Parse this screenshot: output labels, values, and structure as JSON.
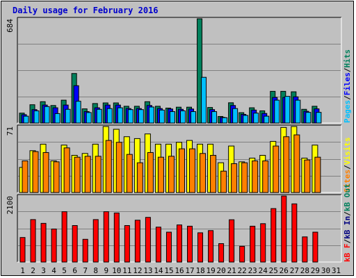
{
  "title": "Daily usage for February 2016",
  "colors": {
    "hits": "#00805c",
    "files": "#0000ff",
    "pages": "#00c0ff",
    "visits": "#ffff00",
    "sites": "#ff8000",
    "kb_in": "#000080",
    "kb_out": "#00805c",
    "kb_f": "#ff0000",
    "weekend": "#00805c",
    "frame_bg": "#c0c0c0",
    "plot_bg": "#c0c0c0"
  },
  "chart_data": [
    {
      "type": "bar",
      "panel": "hits-files-pages",
      "ymax_label": "684",
      "ylim": [
        0,
        684
      ],
      "legend": [
        {
          "label": "Pages",
          "color": "#00c0ff"
        },
        {
          "label": "/",
          "color": "#000000"
        },
        {
          "label": "Files",
          "color": "#0000ff"
        },
        {
          "label": "/",
          "color": "#000000"
        },
        {
          "label": "Hits",
          "color": "#00805c"
        }
      ],
      "categories": [
        "1",
        "2",
        "3",
        "4",
        "5",
        "6",
        "7",
        "8",
        "9",
        "10",
        "11",
        "12",
        "13",
        "14",
        "15",
        "16",
        "17",
        "18",
        "19",
        "20",
        "21",
        "22",
        "23",
        "24",
        "25",
        "26",
        "27",
        "28",
        "29",
        "30",
        "31"
      ],
      "series": [
        {
          "name": "Hits",
          "values": [
            65,
            120,
            140,
            115,
            150,
            325,
            93,
            128,
            132,
            132,
            110,
            110,
            140,
            110,
            98,
            104,
            104,
            684,
            102,
            43,
            133,
            68,
            100,
            80,
            208,
            208,
            205,
            90,
            110,
            0,
            0
          ]
        },
        {
          "name": "Files",
          "values": [
            55,
            88,
            118,
            100,
            118,
            245,
            75,
            100,
            118,
            118,
            95,
            95,
            115,
            95,
            92,
            90,
            92,
            0,
            88,
            37,
            115,
            57,
            85,
            63,
            168,
            168,
            172,
            77,
            93,
            0,
            0
          ]
        },
        {
          "name": "Pages",
          "values": [
            45,
            80,
            108,
            62,
            90,
            143,
            69,
            90,
            95,
            100,
            88,
            88,
            105,
            85,
            75,
            80,
            75,
            300,
            75,
            35,
            95,
            50,
            65,
            45,
            150,
            175,
            150,
            70,
            70,
            0,
            0
          ]
        }
      ]
    },
    {
      "type": "bar",
      "panel": "visits-sites",
      "ymax_label": "71",
      "ylim": [
        0,
        71
      ],
      "legend": [
        {
          "label": "Sites",
          "color": "#ff8000"
        },
        {
          "label": "/",
          "color": "#000000"
        },
        {
          "label": "Visits",
          "color": "#ffff00"
        }
      ],
      "categories": [
        "1",
        "2",
        "3",
        "4",
        "5",
        "6",
        "7",
        "8",
        "9",
        "10",
        "11",
        "12",
        "13",
        "14",
        "15",
        "16",
        "17",
        "18",
        "19",
        "20",
        "21",
        "22",
        "23",
        "24",
        "25",
        "26",
        "27",
        "28",
        "29",
        "30",
        "31"
      ],
      "series": [
        {
          "name": "Visits",
          "values": [
            27,
            45,
            52,
            34,
            51,
            40,
            42,
            52,
            71,
            68,
            60,
            58,
            63,
            52,
            52,
            54,
            56,
            52,
            52,
            32,
            50,
            33,
            37,
            40,
            55,
            70,
            71,
            37,
            51,
            0,
            0
          ]
        },
        {
          "name": "Sites",
          "values": [
            34,
            44,
            43,
            33,
            48,
            38,
            39,
            39,
            56,
            54,
            41,
            32,
            43,
            38,
            39,
            47,
            47,
            42,
            40,
            23,
            31,
            32,
            34,
            34,
            50,
            60,
            62,
            35,
            38,
            0,
            0
          ]
        }
      ]
    },
    {
      "type": "bar",
      "panel": "kb-f-in-out",
      "ymax_label": "2100",
      "ylim": [
        0,
        2100
      ],
      "legend": [
        {
          "label": "kB F",
          "color": "#ff0000"
        },
        {
          "label": "/",
          "color": "#000000"
        },
        {
          "label": "kB In",
          "color": "#000080"
        },
        {
          "label": "/",
          "color": "#000000"
        },
        {
          "label": "kB Out",
          "color": "#00805c"
        }
      ],
      "categories": [
        "1",
        "2",
        "3",
        "4",
        "5",
        "6",
        "7",
        "8",
        "9",
        "10",
        "11",
        "12",
        "13",
        "14",
        "15",
        "16",
        "17",
        "18",
        "19",
        "20",
        "21",
        "22",
        "23",
        "24",
        "25",
        "26",
        "27",
        "28",
        "29",
        "30",
        "31"
      ],
      "series": [
        {
          "name": "kB F",
          "values": [
            780,
            1350,
            1230,
            1050,
            1600,
            1160,
            723,
            1350,
            1600,
            1560,
            1160,
            1330,
            1420,
            1110,
            950,
            1180,
            1140,
            930,
            1000,
            585,
            1345,
            500,
            1140,
            1220,
            1700,
            2100,
            1850,
            800,
            950,
            0,
            0
          ]
        }
      ]
    }
  ],
  "x_labels": [
    {
      "label": "1",
      "weekend": false
    },
    {
      "label": "2",
      "weekend": false
    },
    {
      "label": "3",
      "weekend": false
    },
    {
      "label": "4",
      "weekend": false
    },
    {
      "label": "5",
      "weekend": false
    },
    {
      "label": "6",
      "weekend": true
    },
    {
      "label": "7",
      "weekend": true
    },
    {
      "label": "8",
      "weekend": false
    },
    {
      "label": "9",
      "weekend": false
    },
    {
      "label": "10",
      "weekend": false
    },
    {
      "label": "11",
      "weekend": false
    },
    {
      "label": "12",
      "weekend": false
    },
    {
      "label": "13",
      "weekend": true
    },
    {
      "label": "14",
      "weekend": true
    },
    {
      "label": "15",
      "weekend": false
    },
    {
      "label": "16",
      "weekend": false
    },
    {
      "label": "17",
      "weekend": false
    },
    {
      "label": "18",
      "weekend": false
    },
    {
      "label": "19",
      "weekend": false
    },
    {
      "label": "20",
      "weekend": true
    },
    {
      "label": "21",
      "weekend": true
    },
    {
      "label": "22",
      "weekend": false
    },
    {
      "label": "23",
      "weekend": false
    },
    {
      "label": "24",
      "weekend": false
    },
    {
      "label": "25",
      "weekend": false
    },
    {
      "label": "26",
      "weekend": false
    },
    {
      "label": "27",
      "weekend": true
    },
    {
      "label": "28",
      "weekend": true
    },
    {
      "label": "29",
      "weekend": false
    },
    {
      "label": "30",
      "weekend": false
    },
    {
      "label": "31",
      "weekend": false
    }
  ]
}
